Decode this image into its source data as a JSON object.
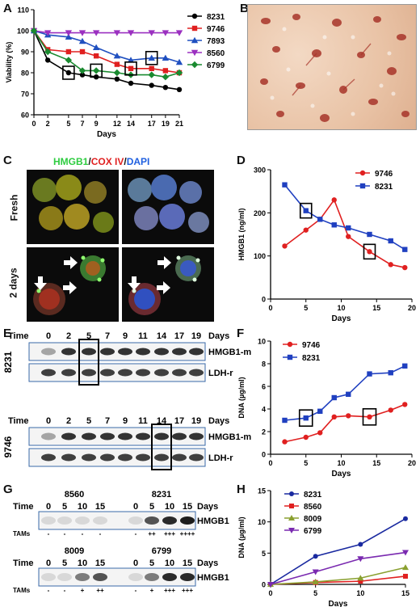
{
  "panel_labels": {
    "A": "A",
    "B": "B",
    "C": "C",
    "D": "D",
    "E": "E",
    "F": "F",
    "G": "G",
    "H": "H"
  },
  "panel_c": {
    "title_parts": [
      "HMGB1",
      "/",
      "COX IV",
      "/",
      "DAPI"
    ],
    "title_colors": [
      "#2ecc40",
      "#111111",
      "#e02020",
      "#111111",
      "#2060e0"
    ],
    "row_labels": [
      "Fresh",
      "2 days"
    ]
  },
  "panel_e": {
    "blots": [
      {
        "row_label": "8231",
        "lanes": [
          "0",
          "2",
          "5",
          "7",
          "9",
          "11",
          "14",
          "17",
          "19"
        ],
        "unit": "Days",
        "time_label": "Time",
        "bands": [
          "HMGB1-m",
          "LDH-r"
        ]
      },
      {
        "row_label": "9746",
        "lanes": [
          "0",
          "2",
          "5",
          "7",
          "9",
          "11",
          "14",
          "17",
          "19"
        ],
        "unit": "Days",
        "time_label": "Time",
        "bands": [
          "HMGB1-m",
          "LDH-r"
        ]
      }
    ]
  },
  "panel_g": {
    "blots": [
      {
        "time_label": "Time",
        "unit": "Days",
        "band": "HMGB1",
        "row_label": "TAMs",
        "groups": [
          {
            "name": "8560",
            "lanes": [
              "0",
              "5",
              "10",
              "15"
            ],
            "tams": [
              "-",
              "-",
              "-",
              "-"
            ]
          },
          {
            "name": "8231",
            "lanes": [
              "0",
              "5",
              "10",
              "15"
            ],
            "tams": [
              "-",
              "++",
              "+++",
              "++++"
            ]
          }
        ]
      },
      {
        "time_label": "Time",
        "unit": "Days",
        "band": "HMGB1",
        "row_label": "TAMs",
        "groups": [
          {
            "name": "8009",
            "lanes": [
              "0",
              "5",
              "10",
              "15"
            ],
            "tams": [
              "-",
              "-",
              "+",
              "++"
            ]
          },
          {
            "name": "6799",
            "lanes": [
              "0",
              "5",
              "10",
              "15"
            ],
            "tams": [
              "-",
              "+",
              "+++",
              "+++"
            ]
          }
        ]
      }
    ]
  },
  "chart_data": [
    {
      "panel": "A",
      "type": "line",
      "xlabel": "Days",
      "ylabel": "Viability (%)",
      "xlim": [
        0,
        21
      ],
      "ylim": [
        60,
        110
      ],
      "x": [
        0,
        2,
        5,
        7,
        9,
        12,
        14,
        17,
        19,
        21
      ],
      "xticks": [
        0,
        2,
        5,
        7,
        9,
        12,
        14,
        17,
        19,
        21
      ],
      "yticks": [
        60,
        70,
        80,
        90,
        100,
        110
      ],
      "series": [
        {
          "name": "8231",
          "color": "#000000",
          "marker": "circle",
          "values": [
            100,
            86,
            80,
            79,
            78,
            77,
            75,
            74,
            73,
            72
          ]
        },
        {
          "name": "9746",
          "color": "#e02020",
          "marker": "square",
          "values": [
            100,
            91,
            90,
            90,
            88,
            84,
            82,
            82,
            81,
            80
          ]
        },
        {
          "name": "7893",
          "color": "#2050c0",
          "marker": "triangle",
          "values": [
            100,
            98,
            97,
            95,
            92,
            88,
            86,
            87,
            87,
            85
          ]
        },
        {
          "name": "8560",
          "color": "#9b30c0",
          "marker": "triangle-down",
          "values": [
            100,
            99,
            99,
            99,
            99,
            99,
            99,
            99,
            99,
            99
          ]
        },
        {
          "name": "6799",
          "color": "#1a8a30",
          "marker": "diamond",
          "values": [
            100,
            90,
            86,
            81,
            81,
            80,
            79,
            79,
            78,
            80
          ]
        }
      ]
    },
    {
      "panel": "D",
      "type": "line",
      "xlabel": "Days",
      "ylabel": "HMGB1 (ng/ml)",
      "xlim": [
        0,
        20
      ],
      "ylim": [
        0,
        300
      ],
      "xticks": [
        0,
        5,
        10,
        15,
        20
      ],
      "yticks": [
        0,
        100,
        200,
        300
      ],
      "series": [
        {
          "name": "9746",
          "color": "#e02020",
          "marker": "circle",
          "x": [
            2,
            5,
            7,
            9,
            11,
            14,
            17,
            19
          ],
          "values": [
            123,
            160,
            185,
            230,
            145,
            110,
            80,
            73
          ]
        },
        {
          "name": "8231",
          "color": "#2040c0",
          "marker": "square",
          "x": [
            2,
            5,
            7,
            9,
            11,
            14,
            17,
            19
          ],
          "values": [
            265,
            205,
            185,
            172,
            165,
            150,
            135,
            115
          ]
        }
      ]
    },
    {
      "panel": "F",
      "type": "line",
      "xlabel": "Days",
      "ylabel": "DNA (µg/ml)",
      "xlim": [
        0,
        20
      ],
      "ylim": [
        0,
        10
      ],
      "xticks": [
        0,
        5,
        10,
        15,
        20
      ],
      "yticks": [
        0,
        2,
        4,
        6,
        8,
        10
      ],
      "series": [
        {
          "name": "9746",
          "color": "#e02020",
          "marker": "circle",
          "x": [
            2,
            5,
            7,
            9,
            11,
            14,
            17,
            19
          ],
          "values": [
            1.1,
            1.5,
            1.9,
            3.3,
            3.4,
            3.3,
            3.9,
            4.4
          ]
        },
        {
          "name": "8231",
          "color": "#2040c0",
          "marker": "square",
          "x": [
            2,
            5,
            7,
            9,
            11,
            14,
            17,
            19
          ],
          "values": [
            3.0,
            3.2,
            3.8,
            5.0,
            5.3,
            7.1,
            7.2,
            7.8
          ]
        }
      ]
    },
    {
      "panel": "H",
      "type": "line",
      "xlabel": "Days",
      "ylabel": "DNA (µg/ml)",
      "xlim": [
        0,
        15
      ],
      "ylim": [
        0,
        15
      ],
      "xticks": [
        0,
        5,
        10,
        15
      ],
      "yticks": [
        0,
        5,
        10,
        15
      ],
      "series": [
        {
          "name": "8231",
          "color": "#1a2aa0",
          "marker": "circle",
          "x": [
            0,
            5,
            10,
            15
          ],
          "values": [
            0,
            4.5,
            6.4,
            10.5
          ]
        },
        {
          "name": "8560",
          "color": "#e02020",
          "marker": "square",
          "x": [
            0,
            5,
            10,
            15
          ],
          "values": [
            0,
            0.3,
            0.5,
            1.3
          ]
        },
        {
          "name": "8009",
          "color": "#8aa030",
          "marker": "triangle",
          "x": [
            0,
            5,
            10,
            15
          ],
          "values": [
            0,
            0.4,
            1.0,
            2.7
          ]
        },
        {
          "name": "6799",
          "color": "#7a2ab0",
          "marker": "triangle-down",
          "x": [
            0,
            5,
            10,
            15
          ],
          "values": [
            0,
            2.0,
            4.1,
            5.1
          ]
        }
      ]
    }
  ]
}
